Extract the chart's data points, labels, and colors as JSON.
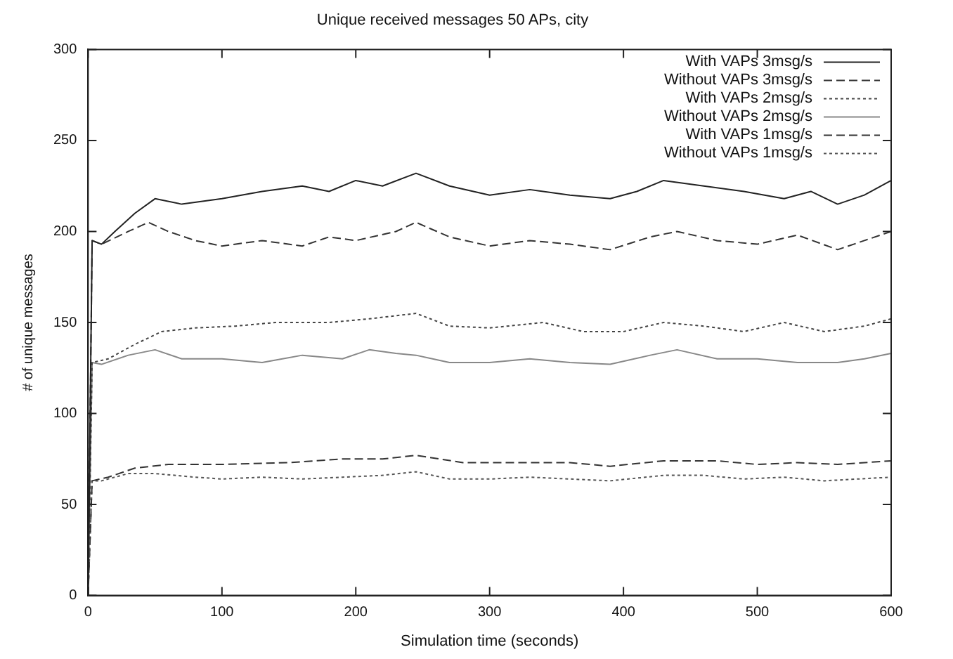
{
  "chart_data": {
    "type": "line",
    "title": "Unique received messages 50 APs, city",
    "xlabel": "Simulation time (seconds)",
    "ylabel": "# of unique messages",
    "xlim": [
      0,
      600
    ],
    "xticks": [
      0,
      100,
      200,
      300,
      400,
      500,
      600
    ],
    "ylim": [
      0,
      300
    ],
    "yticks": [
      0,
      50,
      100,
      150,
      200,
      250,
      300
    ],
    "grid": false,
    "legend": "top right",
    "marker": "none",
    "series": [
      {
        "name": "With VAPs 3msg/s",
        "color": "#222222",
        "line_style": "solid",
        "x": [
          0,
          3,
          10,
          20,
          35,
          50,
          70,
          100,
          130,
          160,
          180,
          200,
          220,
          245,
          270,
          300,
          330,
          360,
          390,
          410,
          430,
          460,
          490,
          520,
          540,
          560,
          580,
          600
        ],
        "values": [
          0,
          195,
          193,
          200,
          210,
          218,
          215,
          218,
          222,
          225,
          222,
          228,
          225,
          232,
          225,
          220,
          223,
          220,
          218,
          222,
          228,
          225,
          222,
          218,
          222,
          215,
          220,
          228
        ]
      },
      {
        "name": "Without VAPs 3msg/s",
        "color": "#333333",
        "line_style": "dashed",
        "x": [
          0,
          3,
          10,
          30,
          45,
          60,
          80,
          100,
          130,
          160,
          180,
          200,
          230,
          245,
          270,
          300,
          330,
          360,
          390,
          420,
          440,
          470,
          500,
          530,
          560,
          580,
          600
        ],
        "values": [
          0,
          195,
          193,
          200,
          205,
          200,
          195,
          192,
          195,
          192,
          197,
          195,
          200,
          205,
          197,
          192,
          195,
          193,
          190,
          197,
          200,
          195,
          193,
          198,
          190,
          195,
          200
        ]
      },
      {
        "name": "With VAPs 2msg/s",
        "color": "#444444",
        "line_style": "dotted",
        "x": [
          0,
          3,
          15,
          35,
          55,
          80,
          110,
          140,
          180,
          210,
          245,
          270,
          300,
          340,
          370,
          400,
          430,
          460,
          490,
          520,
          550,
          580,
          600
        ],
        "values": [
          0,
          128,
          130,
          138,
          145,
          147,
          148,
          150,
          150,
          152,
          155,
          148,
          147,
          150,
          145,
          145,
          150,
          148,
          145,
          150,
          145,
          148,
          152
        ]
      },
      {
        "name": "Without VAPs 2msg/s",
        "color": "#888888",
        "line_style": "solid",
        "x": [
          0,
          3,
          10,
          30,
          50,
          70,
          100,
          130,
          160,
          190,
          210,
          230,
          245,
          270,
          300,
          330,
          360,
          390,
          420,
          440,
          470,
          500,
          530,
          560,
          580,
          600
        ],
        "values": [
          0,
          128,
          127,
          132,
          135,
          130,
          130,
          128,
          132,
          130,
          135,
          133,
          132,
          128,
          128,
          130,
          128,
          127,
          132,
          135,
          130,
          130,
          128,
          128,
          130,
          133
        ]
      },
      {
        "name": "With VAPs 1msg/s",
        "color": "#333333",
        "line_style": "dashed",
        "x": [
          0,
          3,
          15,
          35,
          60,
          100,
          150,
          190,
          220,
          245,
          280,
          320,
          360,
          390,
          430,
          470,
          500,
          530,
          560,
          600
        ],
        "values": [
          0,
          63,
          65,
          70,
          72,
          72,
          73,
          75,
          75,
          77,
          73,
          73,
          73,
          71,
          74,
          74,
          72,
          73,
          72,
          74
        ]
      },
      {
        "name": "Without VAPs 1msg/s",
        "color": "#555555",
        "line_style": "dotted",
        "x": [
          0,
          3,
          10,
          30,
          50,
          80,
          100,
          130,
          160,
          190,
          220,
          245,
          270,
          300,
          330,
          360,
          390,
          430,
          460,
          490,
          520,
          550,
          600
        ],
        "values": [
          0,
          63,
          63,
          67,
          67,
          65,
          64,
          65,
          64,
          65,
          66,
          68,
          64,
          64,
          65,
          64,
          63,
          66,
          66,
          64,
          65,
          63,
          65
        ]
      }
    ]
  }
}
